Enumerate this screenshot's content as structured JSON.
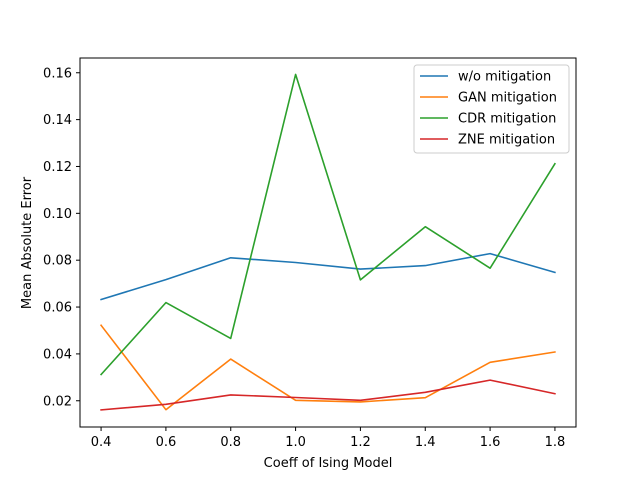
{
  "chart_data": {
    "type": "line",
    "xlabel": "Coeff of Ising Model",
    "ylabel": "Mean Absolute Error",
    "x": [
      0.4,
      0.6,
      0.8,
      1.0,
      1.2,
      1.4,
      1.6,
      1.8
    ],
    "xlim": [
      0.335,
      1.865
    ],
    "ylim": [
      0.0088,
      0.1663
    ],
    "xticks": [
      "0.4",
      "0.6",
      "0.8",
      "1.0",
      "1.2",
      "1.4",
      "1.6",
      "1.8"
    ],
    "yticks": [
      "0.02",
      "0.04",
      "0.06",
      "0.08",
      "0.10",
      "0.12",
      "0.14",
      "0.16"
    ],
    "grid": false,
    "legend_position": "top-right",
    "series": [
      {
        "name": "w/o mitigation",
        "color": "#1f77b4",
        "values": [
          0.0632,
          0.0717,
          0.081,
          0.079,
          0.0762,
          0.0777,
          0.0828,
          0.0748
        ]
      },
      {
        "name": "GAN mitigation",
        "color": "#ff7f0e",
        "values": [
          0.0522,
          0.0162,
          0.0378,
          0.0202,
          0.0195,
          0.0213,
          0.0364,
          0.0408
        ]
      },
      {
        "name": "CDR mitigation",
        "color": "#2ca02c",
        "values": [
          0.0312,
          0.0619,
          0.0466,
          0.1593,
          0.0716,
          0.0943,
          0.0766,
          0.1212
        ]
      },
      {
        "name": "ZNE mitigation",
        "color": "#d62728",
        "values": [
          0.0161,
          0.0185,
          0.0225,
          0.0214,
          0.0202,
          0.0236,
          0.0288,
          0.023
        ]
      }
    ]
  }
}
